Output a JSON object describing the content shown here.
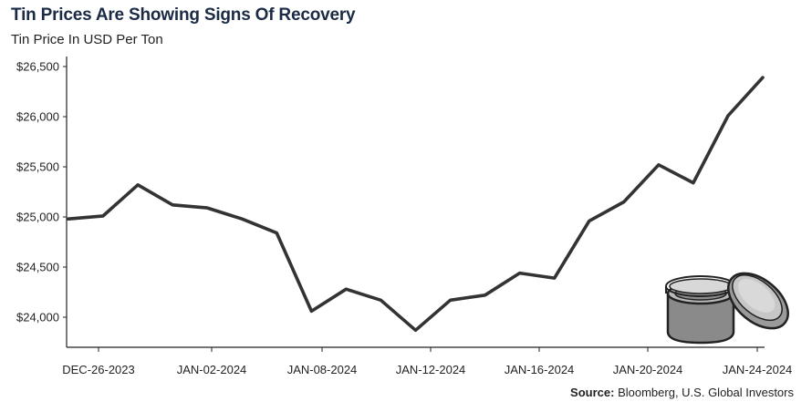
{
  "chart_data": {
    "type": "line",
    "title": "Tin Prices Are Showing Signs Of Recovery",
    "subtitle": "Tin Price In USD Per Ton",
    "xlabel": "",
    "ylabel": "",
    "x_tick_labels": [
      "DEC-26-2023",
      "JAN-02-2024",
      "JAN-08-2024",
      "JAN-12-2024",
      "JAN-16-2024",
      "JAN-20-2024",
      "JAN-24-2024"
    ],
    "y_tick_labels": [
      "$24,000",
      "$24,500",
      "$25,000",
      "$25,500",
      "$26,000",
      "$26,500"
    ],
    "y_ticks": [
      24000,
      24500,
      25000,
      25500,
      26000,
      26500
    ],
    "ylim": [
      23700,
      26600
    ],
    "series": [
      {
        "color": "#333333",
        "values": [
          24980,
          25010,
          25320,
          25120,
          25090,
          24980,
          24840,
          24060,
          24280,
          24170,
          23870,
          24170,
          24220,
          24440,
          24390,
          24960,
          25150,
          25520,
          25340,
          26010,
          26390
        ]
      }
    ],
    "grid": false
  },
  "source": {
    "label": "Source:",
    "text": "Bloomberg, U.S. Global Investors"
  }
}
